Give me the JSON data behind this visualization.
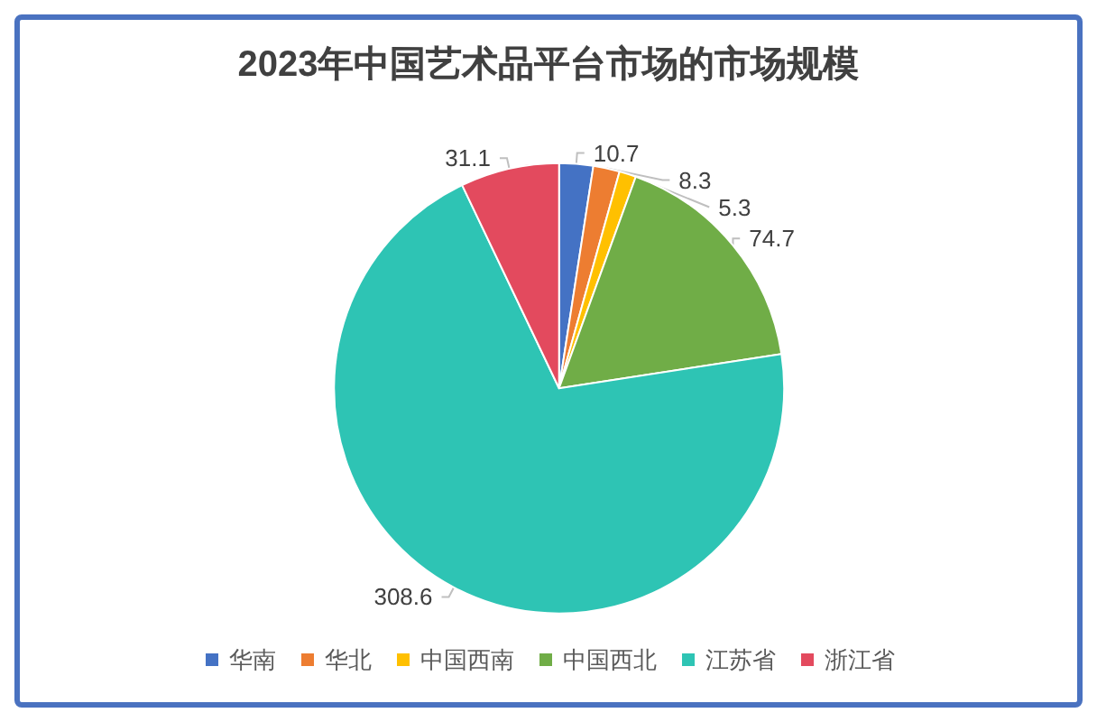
{
  "chart_data": {
    "type": "pie",
    "title": "2023年中国艺术品平台市场的市场规模",
    "categories": [
      "华南",
      "华北",
      "中国西南",
      "中国西北",
      "江苏省",
      "浙江省"
    ],
    "values": [
      10.7,
      8.3,
      5.3,
      74.7,
      308.6,
      31.1
    ],
    "colors": [
      "#4472c4",
      "#ed7d31",
      "#ffc000",
      "#70ad47",
      "#2ec4b4",
      "#e34a5e"
    ],
    "data_labels": true,
    "legend": "bottom"
  }
}
